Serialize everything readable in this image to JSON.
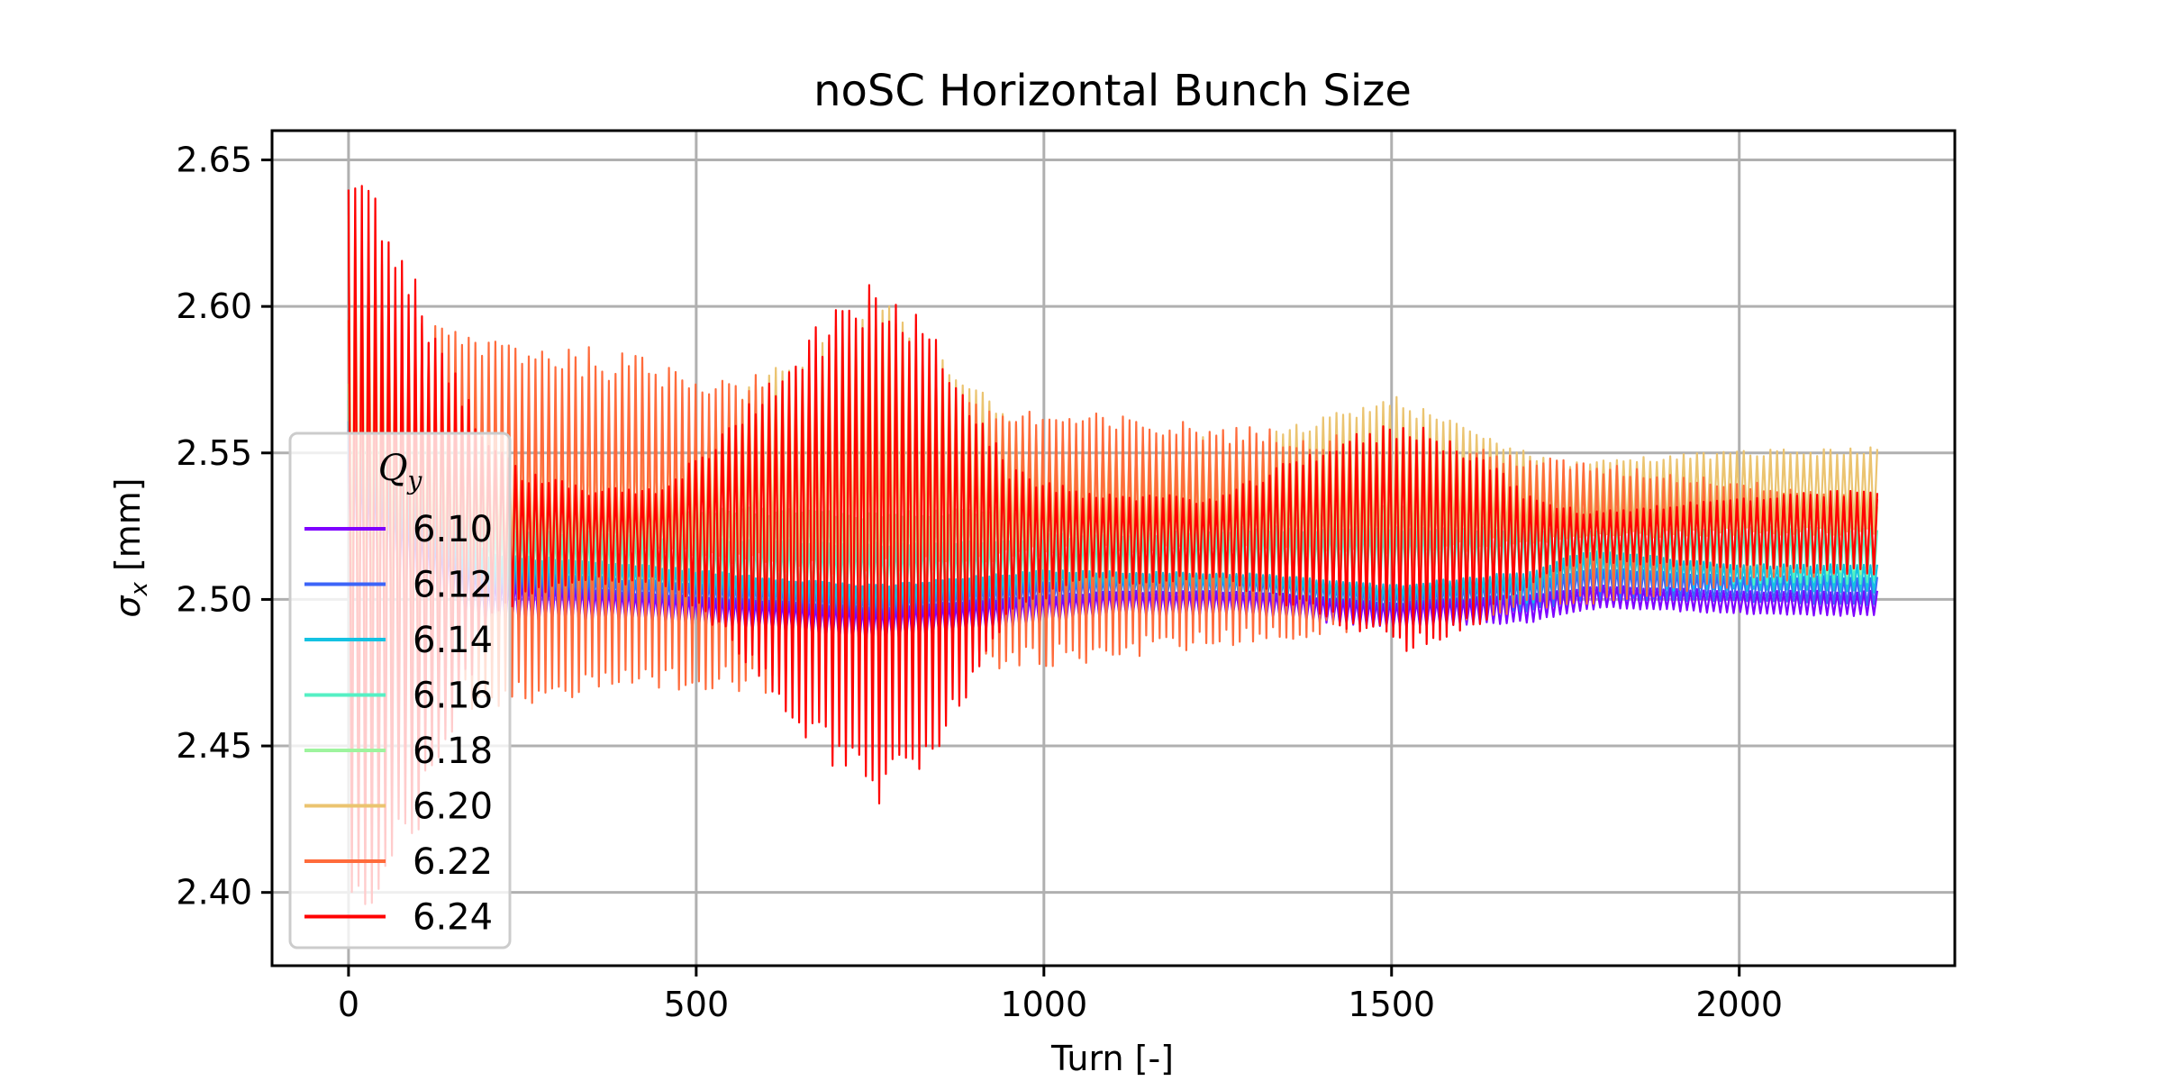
{
  "chart_data": {
    "type": "line",
    "title": "noSC Horizontal Bunch Size",
    "xlabel": "Turn [-]",
    "ylabel": {
      "symbol": "σ",
      "subscript": "x",
      "unit": " [mm]"
    },
    "xlim": [
      -110,
      2310
    ],
    "ylim": [
      2.375,
      2.66
    ],
    "xticks": [
      0,
      500,
      1000,
      1500,
      2000
    ],
    "xtick_labels": [
      "0",
      "500",
      "1000",
      "1500",
      "2000"
    ],
    "yticks": [
      2.4,
      2.45,
      2.5,
      2.55,
      2.6,
      2.65
    ],
    "ytick_labels": [
      "2.40",
      "2.45",
      "2.50",
      "2.55",
      "2.60",
      "2.65"
    ],
    "grid": true,
    "legend": {
      "placement": "lower-left",
      "title": {
        "symbol": "Q",
        "subscript": "y"
      }
    },
    "x_range": [
      0,
      2200
    ],
    "series": [
      {
        "name": "6.10",
        "color": "#7f00ff",
        "envelope": [
          {
            "x": 0,
            "upper": 2.56,
            "lower": 2.488
          },
          {
            "x": 100,
            "upper": 2.53,
            "lower": 2.49
          },
          {
            "x": 200,
            "upper": 2.508,
            "lower": 2.49
          },
          {
            "x": 400,
            "upper": 2.503,
            "lower": 2.492
          },
          {
            "x": 600,
            "upper": 2.5,
            "lower": 2.488
          },
          {
            "x": 760,
            "upper": 2.498,
            "lower": 2.483
          },
          {
            "x": 900,
            "upper": 2.5,
            "lower": 2.488
          },
          {
            "x": 1100,
            "upper": 2.503,
            "lower": 2.494
          },
          {
            "x": 1300,
            "upper": 2.503,
            "lower": 2.494
          },
          {
            "x": 1500,
            "upper": 2.499,
            "lower": 2.49
          },
          {
            "x": 1700,
            "upper": 2.502,
            "lower": 2.492
          },
          {
            "x": 1800,
            "upper": 2.505,
            "lower": 2.497
          },
          {
            "x": 2000,
            "upper": 2.503,
            "lower": 2.495
          },
          {
            "x": 2200,
            "upper": 2.503,
            "lower": 2.494
          }
        ]
      },
      {
        "name": "6.12",
        "color": "#3d64f8",
        "envelope": [
          {
            "x": 0,
            "upper": 2.565,
            "lower": 2.49
          },
          {
            "x": 100,
            "upper": 2.535,
            "lower": 2.492
          },
          {
            "x": 200,
            "upper": 2.512,
            "lower": 2.494
          },
          {
            "x": 400,
            "upper": 2.507,
            "lower": 2.496
          },
          {
            "x": 600,
            "upper": 2.505,
            "lower": 2.492
          },
          {
            "x": 760,
            "upper": 2.502,
            "lower": 2.488
          },
          {
            "x": 900,
            "upper": 2.505,
            "lower": 2.492
          },
          {
            "x": 1100,
            "upper": 2.508,
            "lower": 2.498
          },
          {
            "x": 1300,
            "upper": 2.508,
            "lower": 2.498
          },
          {
            "x": 1500,
            "upper": 2.503,
            "lower": 2.493
          },
          {
            "x": 1700,
            "upper": 2.507,
            "lower": 2.496
          },
          {
            "x": 1800,
            "upper": 2.511,
            "lower": 2.5
          },
          {
            "x": 2000,
            "upper": 2.508,
            "lower": 2.499
          },
          {
            "x": 2200,
            "upper": 2.508,
            "lower": 2.498
          }
        ]
      },
      {
        "name": "6.14",
        "color": "#14c2e2",
        "envelope": [
          {
            "x": 0,
            "upper": 2.57,
            "lower": 2.492
          },
          {
            "x": 100,
            "upper": 2.54,
            "lower": 2.495
          },
          {
            "x": 200,
            "upper": 2.516,
            "lower": 2.497
          },
          {
            "x": 420,
            "upper": 2.512,
            "lower": 2.499
          },
          {
            "x": 600,
            "upper": 2.508,
            "lower": 2.494
          },
          {
            "x": 760,
            "upper": 2.505,
            "lower": 2.49
          },
          {
            "x": 900,
            "upper": 2.508,
            "lower": 2.494
          },
          {
            "x": 1000,
            "upper": 2.51,
            "lower": 2.5
          },
          {
            "x": 1300,
            "upper": 2.509,
            "lower": 2.5
          },
          {
            "x": 1500,
            "upper": 2.505,
            "lower": 2.495
          },
          {
            "x": 1700,
            "upper": 2.51,
            "lower": 2.498
          },
          {
            "x": 1780,
            "upper": 2.517,
            "lower": 2.503
          },
          {
            "x": 2000,
            "upper": 2.512,
            "lower": 2.503
          },
          {
            "x": 2200,
            "upper": 2.512,
            "lower": 2.502
          }
        ]
      },
      {
        "name": "6.16",
        "color": "#56f0c4",
        "envelope": [
          {
            "x": 0,
            "upper": 2.575,
            "lower": 2.495
          },
          {
            "x": 200,
            "upper": 2.525,
            "lower": 2.5
          },
          {
            "x": 760,
            "upper": 2.52,
            "lower": 2.495
          },
          {
            "x": 1300,
            "upper": 2.525,
            "lower": 2.502
          },
          {
            "x": 1780,
            "upper": 2.525,
            "lower": 2.505
          },
          {
            "x": 2200,
            "upper": 2.525,
            "lower": 2.505
          }
        ]
      },
      {
        "name": "6.18",
        "color": "#9ef49e",
        "envelope": [
          {
            "x": 0,
            "upper": 2.58,
            "lower": 2.498
          },
          {
            "x": 200,
            "upper": 2.535,
            "lower": 2.502
          },
          {
            "x": 760,
            "upper": 2.53,
            "lower": 2.498
          },
          {
            "x": 1300,
            "upper": 2.535,
            "lower": 2.505
          },
          {
            "x": 1780,
            "upper": 2.533,
            "lower": 2.508
          },
          {
            "x": 2200,
            "upper": 2.533,
            "lower": 2.508
          }
        ]
      },
      {
        "name": "6.20",
        "color": "#ebc470",
        "envelope": [
          {
            "x": 0,
            "upper": 2.64,
            "lower": 2.49
          },
          {
            "x": 100,
            "upper": 2.59,
            "lower": 2.5
          },
          {
            "x": 200,
            "upper": 2.565,
            "lower": 2.508
          },
          {
            "x": 300,
            "upper": 2.553,
            "lower": 2.512
          },
          {
            "x": 430,
            "upper": 2.55,
            "lower": 2.515
          },
          {
            "x": 550,
            "upper": 2.568,
            "lower": 2.512
          },
          {
            "x": 760,
            "upper": 2.605,
            "lower": 2.505
          },
          {
            "x": 920,
            "upper": 2.57,
            "lower": 2.512
          },
          {
            "x": 1000,
            "upper": 2.557,
            "lower": 2.515
          },
          {
            "x": 1300,
            "upper": 2.555,
            "lower": 2.515
          },
          {
            "x": 1500,
            "upper": 2.57,
            "lower": 2.512
          },
          {
            "x": 1650,
            "upper": 2.555,
            "lower": 2.518
          },
          {
            "x": 1740,
            "upper": 2.547,
            "lower": 2.52
          },
          {
            "x": 2000,
            "upper": 2.551,
            "lower": 2.522
          },
          {
            "x": 2200,
            "upper": 2.552,
            "lower": 2.522
          }
        ]
      },
      {
        "name": "6.22",
        "color": "#ff6b3b",
        "envelope": [
          {
            "x": 0,
            "upper": 2.6,
            "lower": 2.46
          },
          {
            "x": 760,
            "upper": 2.57,
            "lower": 2.47
          },
          {
            "x": 1500,
            "upper": 2.555,
            "lower": 2.49
          },
          {
            "x": 2200,
            "upper": 2.535,
            "lower": 2.51
          }
        ]
      },
      {
        "name": "6.24",
        "color": "#ff0000",
        "envelope": [
          {
            "x": 0,
            "upper": 2.648,
            "lower": 2.385
          },
          {
            "x": 50,
            "upper": 2.638,
            "lower": 2.395
          },
          {
            "x": 100,
            "upper": 2.61,
            "lower": 2.42
          },
          {
            "x": 150,
            "upper": 2.58,
            "lower": 2.455
          },
          {
            "x": 200,
            "upper": 2.556,
            "lower": 2.49
          },
          {
            "x": 250,
            "upper": 2.544,
            "lower": 2.5
          },
          {
            "x": 350,
            "upper": 2.538,
            "lower": 2.505
          },
          {
            "x": 450,
            "upper": 2.538,
            "lower": 2.505
          },
          {
            "x": 550,
            "upper": 2.56,
            "lower": 2.485
          },
          {
            "x": 650,
            "upper": 2.59,
            "lower": 2.452
          },
          {
            "x": 760,
            "upper": 2.61,
            "lower": 2.428
          },
          {
            "x": 850,
            "upper": 2.59,
            "lower": 2.448
          },
          {
            "x": 950,
            "upper": 2.545,
            "lower": 2.495
          },
          {
            "x": 1050,
            "upper": 2.537,
            "lower": 2.505
          },
          {
            "x": 1250,
            "upper": 2.535,
            "lower": 2.506
          },
          {
            "x": 1400,
            "upper": 2.553,
            "lower": 2.493
          },
          {
            "x": 1520,
            "upper": 2.562,
            "lower": 2.482
          },
          {
            "x": 1620,
            "upper": 2.552,
            "lower": 2.489
          },
          {
            "x": 1700,
            "upper": 2.535,
            "lower": 2.505
          },
          {
            "x": 1780,
            "upper": 2.53,
            "lower": 2.513
          },
          {
            "x": 2000,
            "upper": 2.535,
            "lower": 2.51
          },
          {
            "x": 2200,
            "upper": 2.538,
            "lower": 2.508
          }
        ]
      }
    ]
  }
}
